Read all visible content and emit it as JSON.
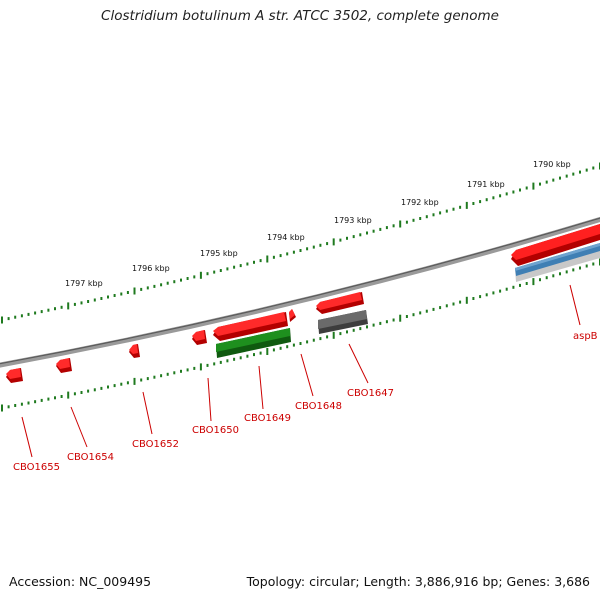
{
  "map": {
    "title": "Clostridium botulinum A str. ATCC 3502, complete genome",
    "accession_text": "Accession: NC_009495",
    "summary_text": "Topology: circular; Length: 3,886,916 bp; Genes: 3,686",
    "kbp_ticks": [
      "1790 kbp",
      "1791 kbp",
      "1792 kbp",
      "1793 kbp",
      "1794 kbp",
      "1795 kbp",
      "1796 kbp",
      "1797 kbp"
    ],
    "colors": {
      "backbone": "#808080",
      "tick": "#1f7a1f",
      "cds_forward": "#ee1111",
      "cds_reverse_green": "#1e8f1e",
      "cds_reverse_gray": "#5f5f5f",
      "cds_reverse_blue": "#3f7fb4",
      "label": "#cc0000"
    },
    "genes": [
      {
        "name": "aspB",
        "color_key": "cds_forward"
      },
      {
        "name": "CBO1647",
        "color_key": "cds_forward"
      },
      {
        "name": "CBO1648",
        "color_key": "cds_forward"
      },
      {
        "name": "CBO1649",
        "color_key": "cds_forward"
      },
      {
        "name": "CBO1650",
        "color_key": "cds_forward"
      },
      {
        "name": "CBO1652",
        "color_key": "cds_forward"
      },
      {
        "name": "CBO1654",
        "color_key": "cds_forward"
      },
      {
        "name": "CBO1655",
        "color_key": "cds_forward"
      }
    ]
  }
}
